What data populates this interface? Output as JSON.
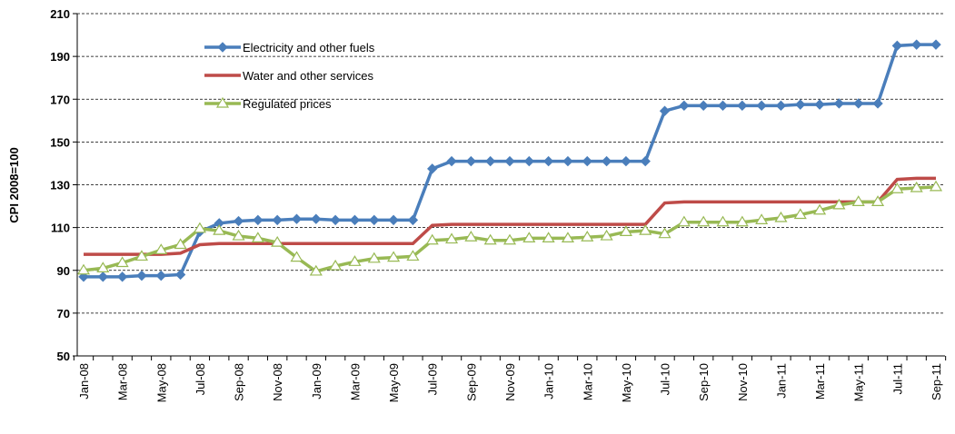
{
  "chart_data": {
    "type": "line",
    "ylabel": "CPI 2008=100",
    "categories": [
      "Jan-08",
      null,
      "Mar-08",
      null,
      "May-08",
      null,
      "Jul-08",
      null,
      "Sep-08",
      null,
      "Nov-08",
      null,
      "Jan-09",
      null,
      "Mar-09",
      null,
      "May-09",
      null,
      "Jul-09",
      null,
      "Sep-09",
      null,
      "Nov-09",
      null,
      "Jan-10",
      null,
      "Mar-10",
      null,
      "May-10",
      null,
      "Jul-10",
      null,
      "Sep-10",
      null,
      "Nov-10",
      null,
      "Jan-11",
      null,
      "Mar-11",
      null,
      "May-11",
      null,
      "Jul-11",
      null,
      "Sep-11"
    ],
    "series": [
      {
        "name": "Electricity and other fuels",
        "color": "#4a7ebb",
        "marker": "diamond",
        "values": [
          87,
          87,
          87,
          87.5,
          87.5,
          88,
          108,
          112,
          113,
          113.5,
          113.5,
          114,
          114,
          113.5,
          113.5,
          113.5,
          113.5,
          113.5,
          137.5,
          141,
          141,
          141,
          141,
          141,
          141,
          141,
          141,
          141,
          141,
          141,
          164.5,
          167,
          167,
          167,
          167,
          167,
          167,
          167.5,
          167.5,
          168,
          168,
          168,
          195,
          195.5,
          195.5
        ]
      },
      {
        "name": "Water and other services",
        "color": "#be4b48",
        "marker": "none",
        "values": [
          97.5,
          97.5,
          97.5,
          97.5,
          97.5,
          98,
          102,
          102.5,
          102.5,
          102.5,
          102.5,
          102.5,
          102.5,
          102.5,
          102.5,
          102.5,
          102.5,
          102.5,
          111,
          111.5,
          111.5,
          111.5,
          111.5,
          111.5,
          111.5,
          111.5,
          111.5,
          111.5,
          111.5,
          111.5,
          121.5,
          122,
          122,
          122,
          122,
          122,
          122,
          122,
          122,
          122,
          122,
          122,
          132.5,
          133,
          133
        ]
      },
      {
        "name": "Regulated prices",
        "color": "#98b954",
        "marker": "triangle",
        "values": [
          90,
          91,
          93.5,
          96.5,
          99.5,
          102,
          109.5,
          108.5,
          106,
          105,
          103,
          96,
          89.5,
          92,
          94,
          95.5,
          96,
          96.5,
          104,
          104.5,
          105.5,
          104,
          104,
          105,
          105,
          105,
          105.5,
          106,
          108,
          108.5,
          107,
          112.5,
          112.5,
          112.5,
          112.5,
          113.5,
          114.5,
          116,
          118,
          120.5,
          122,
          122,
          128,
          128.5,
          129
        ]
      }
    ],
    "ylim": [
      50,
      210
    ],
    "yticks": [
      50,
      70,
      90,
      110,
      130,
      150,
      170,
      190,
      210
    ],
    "grid": true,
    "legend": "upper left"
  }
}
